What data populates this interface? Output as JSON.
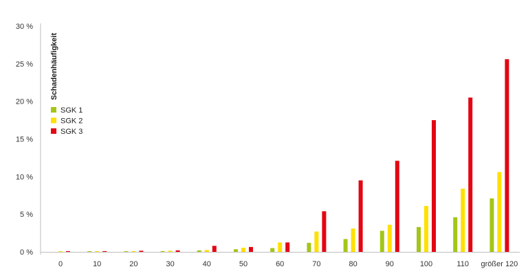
{
  "chart_data": {
    "type": "bar",
    "ylabel": "Schadenhäufigkeit",
    "ylim": [
      0,
      30
    ],
    "yticks": [
      0,
      5,
      10,
      15,
      20,
      25,
      30
    ],
    "ytick_labels": [
      "0 %",
      "5 %",
      "10 %",
      "15 %",
      "20 %",
      "25 %",
      "30 %"
    ],
    "categories": [
      "0",
      "10",
      "20",
      "30",
      "40",
      "50",
      "60",
      "70",
      "80",
      "90",
      "100",
      "110",
      "größer 120"
    ],
    "legend_position": "top-left",
    "series": [
      {
        "name": "SGK 1",
        "color": "#a3c617",
        "values": [
          0.0,
          0.05,
          0.05,
          0.1,
          0.2,
          0.35,
          0.5,
          1.2,
          1.7,
          2.8,
          3.3,
          4.6,
          7.1
        ]
      },
      {
        "name": "SGK 2",
        "color": "#ffe000",
        "values": [
          0.05,
          0.05,
          0.1,
          0.15,
          0.25,
          0.55,
          1.25,
          2.7,
          3.1,
          3.6,
          6.1,
          8.4,
          10.6
        ]
      },
      {
        "name": "SGK 3",
        "color": "#e30613",
        "values": [
          0.1,
          0.1,
          0.15,
          0.2,
          0.8,
          0.65,
          1.25,
          5.4,
          9.5,
          12.1,
          17.5,
          20.5,
          25.6
        ]
      }
    ]
  }
}
